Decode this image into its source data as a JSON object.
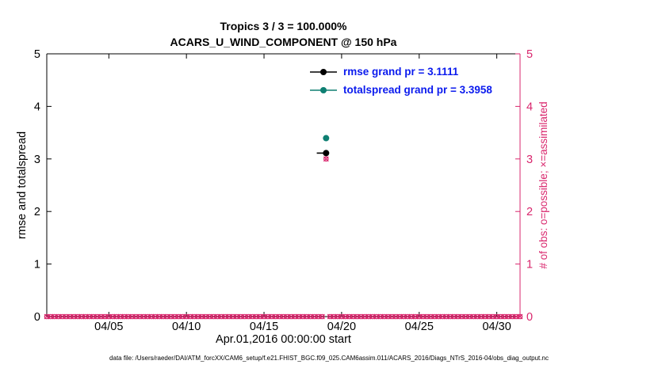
{
  "figure": {
    "title_line1": "Tropics 3 / 3 = 100.000%",
    "title_line2": "ACARS_U_WIND_COMPONENT @ 150 hPa",
    "footer": "data file: /Users/raeder/DAI/ATM_forcXX/CAM6_setup/f.e21.FHIST_BGC.f09_025.CAM6assim.011/ACARS_2016/Diags_NTrS_2016-04/obs_diag_output.nc"
  },
  "legend": {
    "text_color": "#0b1bee",
    "items": [
      {
        "label": "rmse grand pr = 3.1111",
        "color": "#000000"
      },
      {
        "label": "totalspread grand pr = 3.3958",
        "color": "#0e7f72"
      }
    ]
  },
  "colors": {
    "axis_left": "#000000",
    "axis_right": "#d9276d",
    "plot_bg": "#ffffff"
  },
  "chart_data": {
    "type": "scatter",
    "title": "Tropics 3 / 3 = 100.000%",
    "subtitle": "ACARS_U_WIND_COMPONENT @ 150 hPa",
    "xlabel": "Apr.01,2016 00:00:00 start",
    "ylabel": "rmse and totalspread",
    "ylabel_right": "# of obs: o=possible; ×=assimilated",
    "ylim": [
      0,
      5
    ],
    "y_ticks": [
      0,
      1,
      2,
      3,
      4,
      5
    ],
    "x_axis": {
      "epoch": "Apr.01,2016 00:00:00",
      "domain_days": [
        0,
        30.5
      ],
      "tick_days": [
        4,
        9,
        14,
        19,
        24,
        29
      ],
      "tick_labels": [
        "04/05",
        "04/10",
        "04/15",
        "04/20",
        "04/25",
        "04/30"
      ]
    },
    "series": [
      {
        "name": "rmse",
        "color": "#000000",
        "marker": "filled-circle",
        "grand_value": 3.1111,
        "lead_segment_from_day": 17.4,
        "points": [
          {
            "day": 18,
            "value": 3.1111
          }
        ]
      },
      {
        "name": "totalspread",
        "color": "#0e7f72",
        "marker": "filled-circle",
        "grand_value": 3.3958,
        "points": [
          {
            "day": 18,
            "value": 3.3958
          }
        ]
      },
      {
        "name": "obs_possible_and_assimilated",
        "color": "#d9276d",
        "marker": "circle-and-x",
        "axis": "right",
        "sampling": {
          "start_day": 0,
          "end_day": 30.5,
          "interval_days": 0.25,
          "default_value": 0
        },
        "overrides": [
          {
            "day": 18,
            "value": 3
          }
        ]
      }
    ]
  }
}
